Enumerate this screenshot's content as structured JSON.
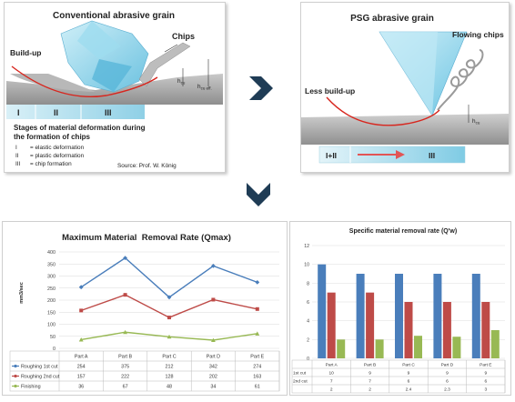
{
  "top_left": {
    "title": "Conventional abrasive grain",
    "chips": "Chips",
    "buildup": "Build-up",
    "hcu": "h",
    "hcu_sub": "cu",
    "hcueff": "h",
    "hcueff_sub": "cu eff.",
    "stage_1": "I",
    "stage_2": "II",
    "stage_3": "III",
    "stages_title_1": "Stages of material deformation during",
    "stages_title_2": "the formation of chips",
    "legend_1": "I        = elastic deformation",
    "legend_2": "II       = plastic deformation",
    "legend_3": "III      = chip formation",
    "source": "Source: Prof. W. König"
  },
  "top_right": {
    "title": "PSG abrasive grain",
    "chips": "Flowing chips",
    "buildup": "Less build-up",
    "hcu": "h",
    "hcu_sub": "cu",
    "stage_12": "I+II",
    "stage_3": "III"
  },
  "chart_data": [
    {
      "type": "line",
      "title": "Maximum Material  Removal Rate (Qmax)",
      "ylabel": "mm3/sec",
      "categories": [
        "Part A",
        "Part B",
        "Part C",
        "Part D",
        "Part E"
      ],
      "ylim": [
        0,
        400
      ],
      "yticks": [
        0,
        50,
        100,
        150,
        200,
        250,
        300,
        350,
        400
      ],
      "grid": true,
      "series": [
        {
          "name": "Roughing 1st cut",
          "color": "#4a7ebb",
          "values": [
            254,
            375,
            212,
            342,
            274
          ]
        },
        {
          "name": "Roughing 2nd cut",
          "color": "#be4b48",
          "values": [
            157,
            222,
            128,
            202,
            163
          ]
        },
        {
          "name": "Finishing",
          "color": "#98b954",
          "values": [
            36,
            67,
            48,
            34,
            61
          ]
        }
      ]
    },
    {
      "type": "bar",
      "title": "Specific material removal rate (Q'w)",
      "categories": [
        "Part A",
        "Part B",
        "Part C",
        "Part D",
        "Part E"
      ],
      "ylim": [
        0,
        12
      ],
      "yticks": [
        0,
        2,
        4,
        6,
        8,
        10,
        12
      ],
      "grid": true,
      "series": [
        {
          "name": "1st cut",
          "color": "#4a7ebb",
          "values": [
            10,
            9,
            9,
            9,
            9
          ]
        },
        {
          "name": "2nd cut",
          "color": "#be4b48",
          "values": [
            7,
            7,
            6,
            6,
            6
          ]
        },
        {
          "name": "",
          "color": "#98b954",
          "values": [
            2,
            2,
            2.4,
            2.3,
            3
          ]
        }
      ]
    }
  ]
}
